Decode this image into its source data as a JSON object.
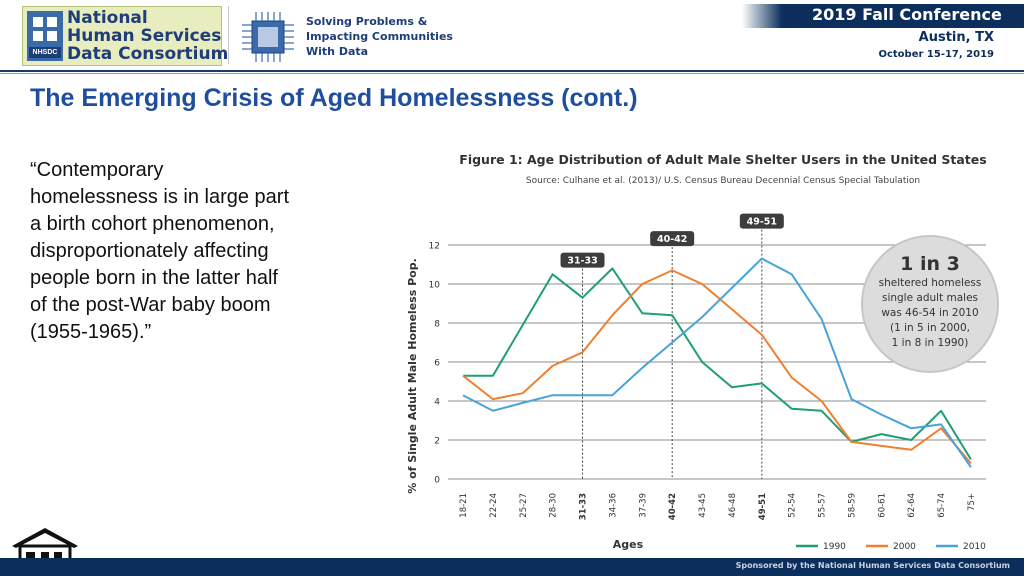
{
  "header": {
    "logo_lines": [
      "National",
      "Human Services",
      "Data Consortium"
    ],
    "logo_mark": "NHSDC",
    "tagline_lines": [
      "Solving Problems &",
      "Impacting Communities",
      "With Data"
    ],
    "conference_title": "2019 Fall Conference",
    "city": "Austin, TX",
    "dates": "October 15-17, 2019"
  },
  "slide": {
    "title": "The Emerging Crisis of Aged Homelessness (cont.)",
    "quote": "“Contemporary homelessness is in large part a birth cohort phenomenon, disproportionately affecting people born in the latter half of the post-War baby boom (1955-1965).”"
  },
  "footer": {
    "sponsor": "Sponsored by the National Human Services Data Consortium"
  },
  "icons": {
    "home": "home-icon",
    "chip": "circuit-chip-icon"
  },
  "colors": {
    "accent_navy": "#0c2e5c",
    "title_blue": "#1f4e9e",
    "s1990": "#1f9e76",
    "s2000": "#f07f30",
    "s2010": "#4aa3d8"
  },
  "chart_data": {
    "type": "line",
    "title": "Figure 1: Age Distribution of Adult Male Shelter Users in the United States",
    "subtitle": "Source: Culhane et al. (2013)/ U.S. Census Bureau Decennial Census Special Tabulation",
    "xlabel": "Ages",
    "ylabel": "% of Single Adult Male Homeless Pop.",
    "ylim": [
      0,
      12
    ],
    "yticks": [
      0,
      2,
      4,
      6,
      8,
      10,
      12
    ],
    "grid": true,
    "legend_position": "bottom-right",
    "categories": [
      "18-21",
      "22-24",
      "25-27",
      "28-30",
      "31-33",
      "34-36",
      "37-39",
      "40-42",
      "43-45",
      "46-48",
      "49-51",
      "52-54",
      "55-57",
      "58-59",
      "60-61",
      "62-64",
      "65-74",
      "75+"
    ],
    "bold_categories": [
      "31-33",
      "40-42",
      "49-51"
    ],
    "series": [
      {
        "name": "1990",
        "color": "#1f9e76",
        "values": [
          5.3,
          5.3,
          7.9,
          10.5,
          9.3,
          10.8,
          8.5,
          8.4,
          6.0,
          4.7,
          4.9,
          3.6,
          3.5,
          1.9,
          2.3,
          2.0,
          3.5,
          1.0
        ]
      },
      {
        "name": "2000",
        "color": "#f07f30",
        "values": [
          5.3,
          4.1,
          4.4,
          5.8,
          6.5,
          8.4,
          10.0,
          10.7,
          10.0,
          8.7,
          7.4,
          5.2,
          4.0,
          1.9,
          1.7,
          1.5,
          2.6,
          0.8
        ]
      },
      {
        "name": "2010",
        "color": "#4aa3d8",
        "values": [
          4.3,
          3.5,
          3.9,
          4.3,
          4.3,
          4.3,
          5.7,
          7.0,
          8.3,
          9.8,
          11.3,
          10.5,
          8.2,
          4.1,
          3.3,
          2.6,
          2.8,
          0.6
        ]
      }
    ],
    "markers": [
      {
        "label": "31-33",
        "category": "31-33",
        "top_value": 11.2
      },
      {
        "label": "40-42",
        "category": "40-42",
        "top_value": 12.3
      },
      {
        "label": "49-51",
        "category": "49-51",
        "top_value": 13.2
      }
    ],
    "callout": {
      "headline": "1 in 3",
      "lines": [
        "sheltered homeless",
        "single adult males",
        "was 46-54 in 2010",
        "(1 in 5 in 2000,",
        "1 in 8 in 1990)"
      ]
    }
  }
}
